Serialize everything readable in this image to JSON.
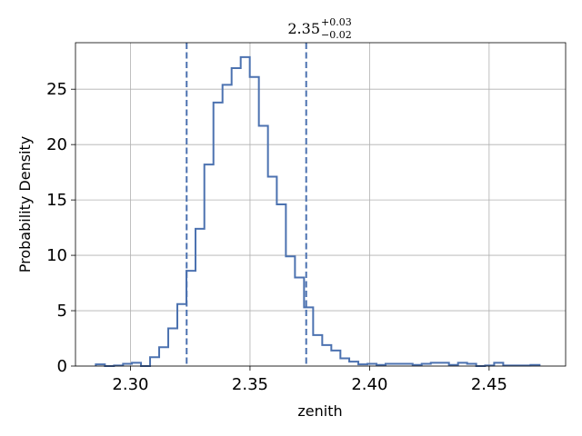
{
  "chart_data": {
    "type": "histogram",
    "title": {
      "value": "2.35",
      "upper": "+0.03",
      "lower": "−0.02"
    },
    "xlabel": "zenith",
    "ylabel": "Probability Density",
    "xlim": [
      2.277,
      2.482
    ],
    "ylim": [
      0,
      29.2
    ],
    "x_ticks": [
      2.3,
      2.35,
      2.4,
      2.45
    ],
    "x_tick_labels": [
      "2.30",
      "2.35",
      "2.40",
      "2.45"
    ],
    "y_ticks": [
      0,
      5,
      10,
      15,
      20,
      25
    ],
    "y_tick_labels": [
      "0",
      "5",
      "10",
      "15",
      "20",
      "25"
    ],
    "grid": true,
    "vlines": [
      2.3235,
      2.3735
    ],
    "color": "#4c72b0",
    "bin_edges": [
      2.2855,
      2.2893,
      2.2931,
      2.2969,
      2.3006,
      2.3044,
      2.3082,
      2.312,
      2.3158,
      2.3196,
      2.3234,
      2.3272,
      2.3309,
      2.3347,
      2.3385,
      2.3423,
      2.3461,
      2.3499,
      2.3537,
      2.3575,
      2.3612,
      2.365,
      2.3688,
      2.3726,
      2.3764,
      2.3802,
      2.384,
      2.3878,
      2.3915,
      2.3953,
      2.3991,
      2.4029,
      2.4067,
      2.4105,
      2.4143,
      2.418,
      2.4218,
      2.4256,
      2.4294,
      2.4332,
      2.437,
      2.4408,
      2.4446,
      2.4483,
      2.4521,
      2.4559,
      2.4597,
      2.4635,
      2.4673,
      2.4711
    ],
    "values": [
      0.15,
      0.0,
      0.05,
      0.2,
      0.3,
      0.0,
      0.8,
      1.7,
      3.4,
      5.6,
      8.6,
      12.4,
      18.2,
      23.8,
      25.4,
      26.9,
      27.9,
      26.1,
      21.7,
      17.1,
      14.6,
      9.9,
      8.0,
      5.3,
      2.8,
      1.9,
      1.4,
      0.7,
      0.4,
      0.15,
      0.2,
      0.1,
      0.2,
      0.2,
      0.2,
      0.1,
      0.2,
      0.3,
      0.3,
      0.1,
      0.3,
      0.2,
      0.0,
      0.05,
      0.3,
      0.05,
      0.05,
      0.05,
      0.1
    ]
  }
}
